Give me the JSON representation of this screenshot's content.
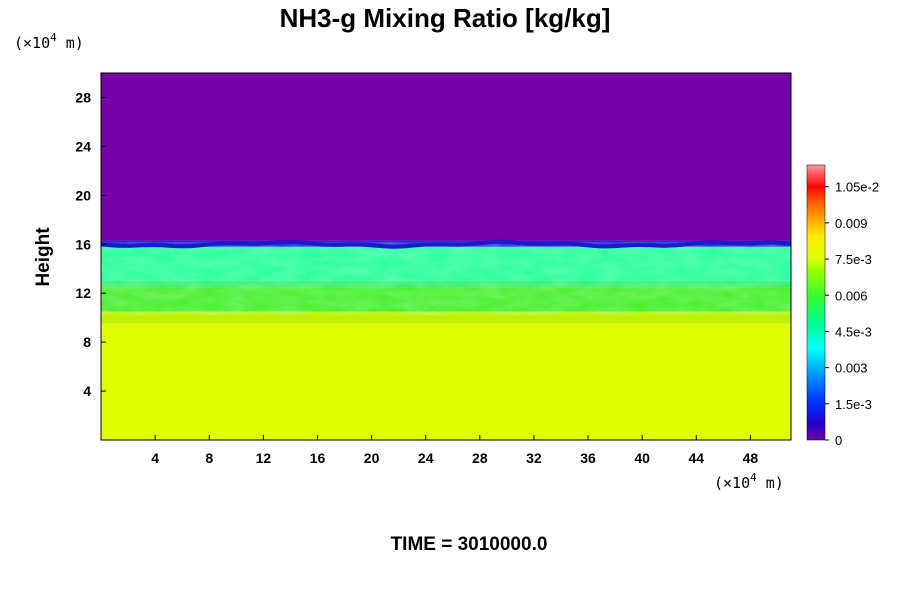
{
  "chart_data": {
    "type": "heatmap",
    "title": "NH3-g Mixing Ratio [kg/kg]",
    "ylabel": "Height",
    "x_unit": "(×10",
    "x_unit_exp": "4",
    "x_unit_tail": " m)",
    "y_unit": "(×10",
    "y_unit_exp": "4",
    "y_unit_tail": " m)",
    "xlim": [
      0,
      51
    ],
    "ylim": [
      0,
      30
    ],
    "x_ticks": [
      "4",
      "8",
      "12",
      "16",
      "20",
      "24",
      "28",
      "32",
      "36",
      "40",
      "44",
      "48"
    ],
    "y_ticks": [
      "4",
      "8",
      "12",
      "16",
      "20",
      "24",
      "28"
    ],
    "colorbar": {
      "range": [
        0,
        0.0114
      ],
      "tick_labels": [
        "0",
        "1.5e-3",
        "0.003",
        "4.5e-3",
        "0.006",
        "7.5e-3",
        "0.009",
        "1.05e-2"
      ],
      "tick_values": [
        0,
        0.0015,
        0.003,
        0.0045,
        0.006,
        0.0075,
        0.009,
        0.0105
      ]
    },
    "layers": [
      {
        "height_range": [
          0,
          9.5
        ],
        "value": 0.0075,
        "color": "#ddff00"
      },
      {
        "height_range": [
          9.5,
          10.5
        ],
        "value": 0.0069,
        "color": "#bff200"
      },
      {
        "height_range": [
          10.5,
          12.5
        ],
        "value": 0.0058,
        "color": "#44ee22"
      },
      {
        "height_range": [
          12.5,
          13.0
        ],
        "value": 0.0052,
        "color": "#33ee66"
      },
      {
        "height_range": [
          13.0,
          15.8
        ],
        "value": 0.0042,
        "color": "#22ff99"
      },
      {
        "height_range": [
          15.8,
          16.3
        ],
        "value": 0.0015,
        "color": "#2222dd"
      },
      {
        "height_range": [
          16.3,
          30
        ],
        "value": 0.0,
        "color": "#7400a6"
      }
    ],
    "footer": "TIME = 3010000.0"
  }
}
